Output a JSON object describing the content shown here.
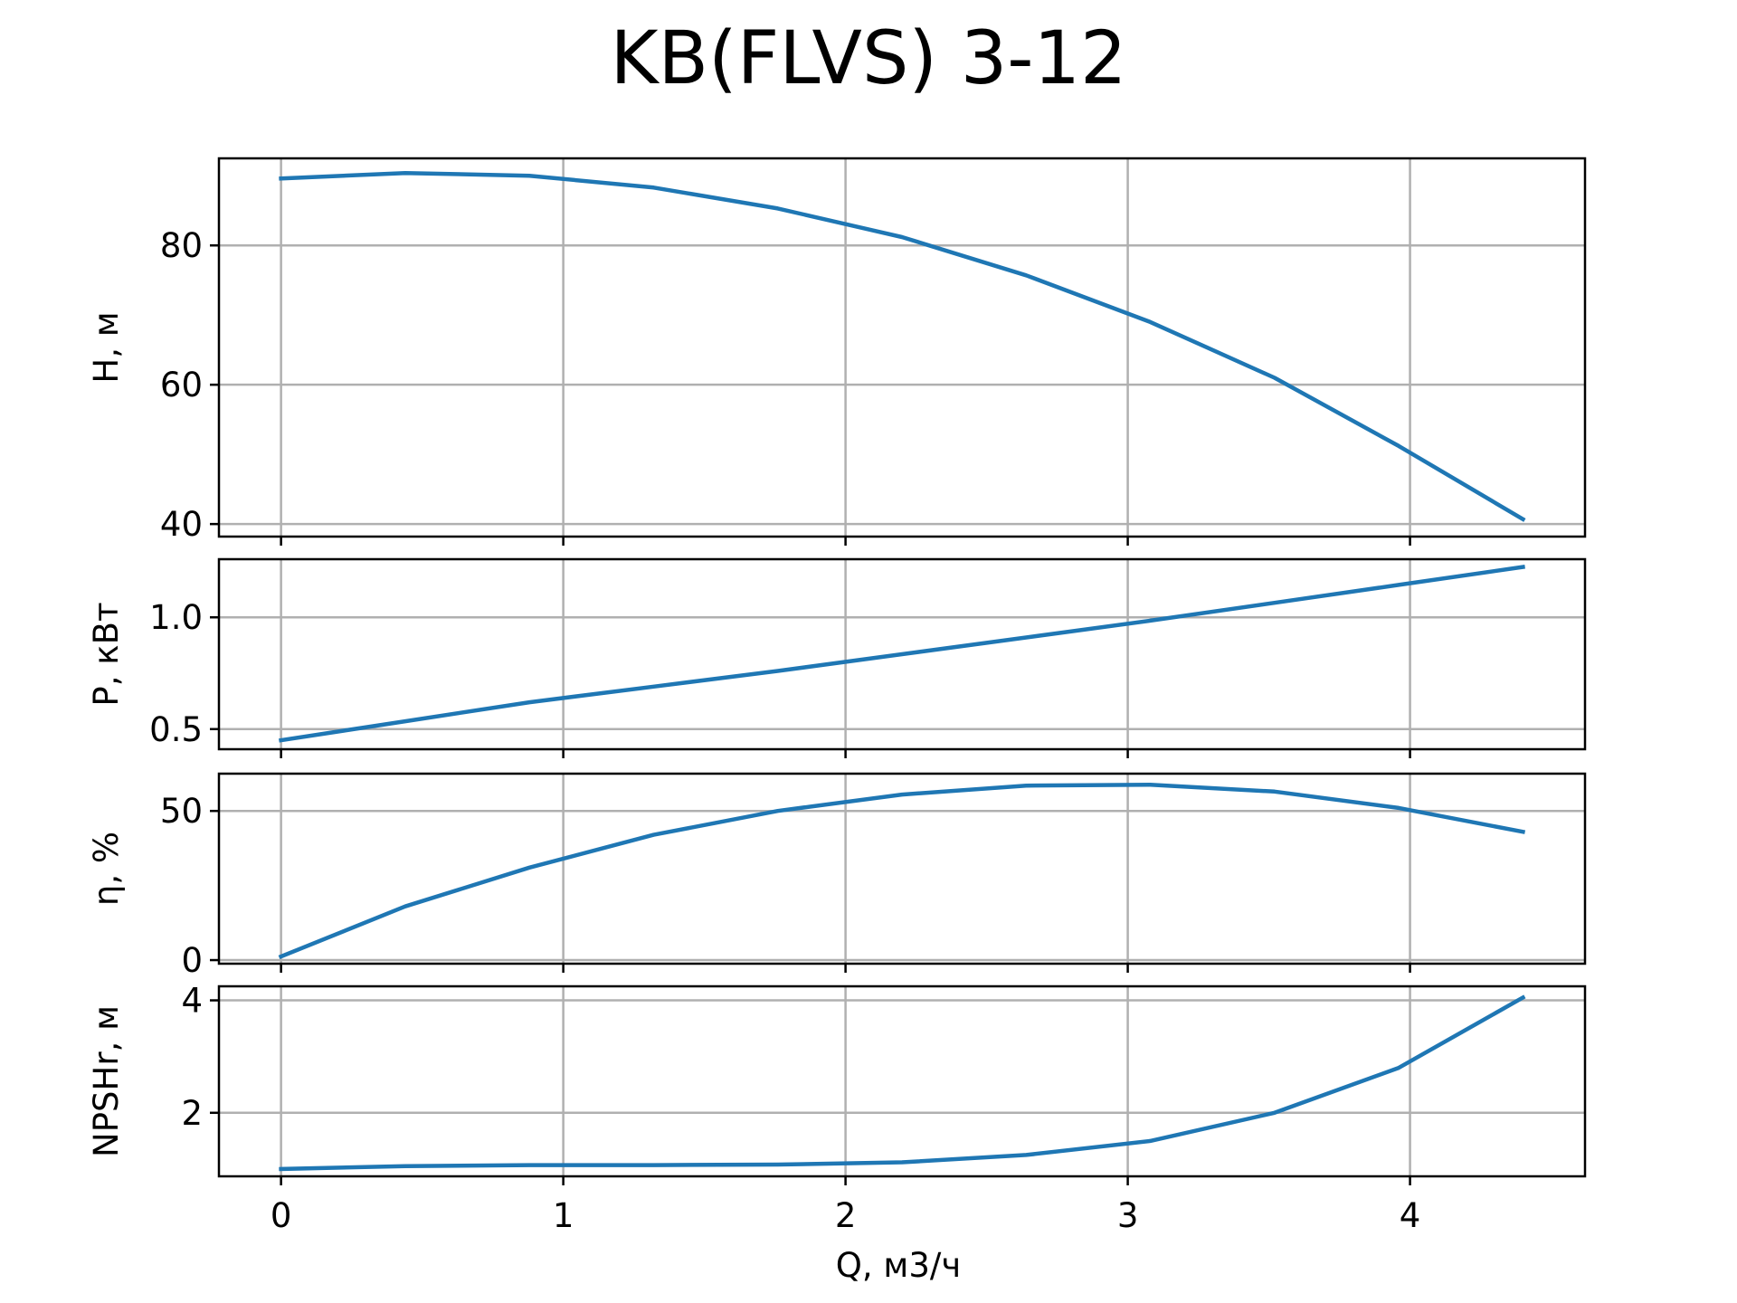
{
  "chart_data": {
    "title": "KB(FLVS) 3-12",
    "type": "line",
    "line_color": "#1f77b4",
    "grid": true,
    "xlabel": "Q, м3/ч",
    "xlim": [
      -0.22,
      4.62
    ],
    "x_ticks": [
      0,
      1,
      2,
      3,
      4
    ],
    "x_tick_labels": [
      "0",
      "1",
      "2",
      "3",
      "4"
    ],
    "x": [
      0,
      0.44,
      0.88,
      1.32,
      1.76,
      2.2,
      2.64,
      3.08,
      3.52,
      3.96,
      4.4
    ],
    "panels": [
      {
        "key": "head",
        "ylabel": "H, м",
        "ylim": [
          38.2,
          92.5
        ],
        "y_ticks": [
          40,
          60,
          80
        ],
        "y_tick_labels": [
          "40",
          "60",
          "80"
        ],
        "series": {
          "values": [
            89.6,
            90.4,
            90.0,
            88.3,
            85.3,
            81.2,
            75.7,
            69.0,
            61.0,
            51.2,
            40.7
          ]
        }
      },
      {
        "key": "power",
        "ylabel": "P, кВт",
        "ylim": [
          0.41,
          1.26
        ],
        "y_ticks": [
          0.5,
          1.0
        ],
        "y_tick_labels": [
          "0.5",
          "1.0"
        ],
        "series": {
          "values": [
            0.45,
            0.535,
            0.62,
            0.69,
            0.76,
            0.835,
            0.91,
            0.985,
            1.065,
            1.145,
            1.225
          ]
        }
      },
      {
        "key": "efficiency",
        "ylabel": "η, %",
        "ylim": [
          -1.2,
          62.5
        ],
        "y_ticks": [
          0,
          50
        ],
        "y_tick_labels": [
          "0",
          "50"
        ],
        "series": {
          "values": [
            1.2,
            18,
            31,
            42,
            50,
            55.5,
            58.5,
            58.8,
            56.5,
            51,
            43
          ]
        }
      },
      {
        "key": "npshr",
        "ylabel": "NPSHr, м",
        "ylim": [
          0.87,
          4.25
        ],
        "y_ticks": [
          2,
          4
        ],
        "y_tick_labels": [
          "2",
          "4"
        ],
        "series": {
          "values": [
            1.0,
            1.05,
            1.07,
            1.07,
            1.08,
            1.12,
            1.25,
            1.5,
            2.0,
            2.8,
            4.05
          ]
        }
      }
    ]
  }
}
